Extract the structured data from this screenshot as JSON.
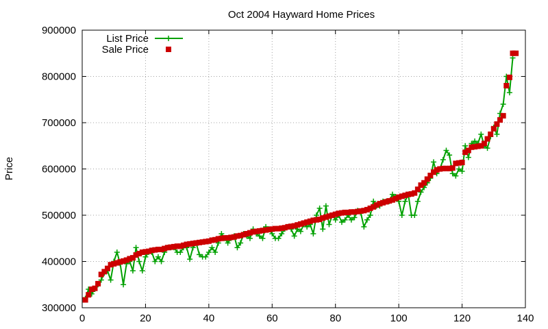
{
  "chart_data": {
    "type": "line",
    "title": "Oct 2004 Hayward Home Prices",
    "xlabel": "",
    "ylabel": "Price",
    "xlim": [
      0,
      140
    ],
    "ylim": [
      300000,
      900000
    ],
    "xticks": [
      0,
      20,
      40,
      60,
      80,
      100,
      120,
      140
    ],
    "yticks": [
      300000,
      400000,
      500000,
      600000,
      700000,
      800000,
      900000
    ],
    "xtick_labels": [
      "0",
      "20",
      "40",
      "60",
      "80",
      "100",
      "120",
      "140"
    ],
    "ytick_labels": [
      "300000",
      "400000",
      "500000",
      "600000",
      "700000",
      "800000",
      "900000"
    ],
    "grid": true,
    "legend_position": "top-left",
    "series": [
      {
        "name": "List Price",
        "style": "line+plus",
        "color": "#00a000",
        "x": [
          1,
          2,
          3,
          4,
          5,
          6,
          7,
          8,
          9,
          10,
          11,
          12,
          13,
          14,
          15,
          16,
          17,
          18,
          19,
          20,
          21,
          22,
          23,
          24,
          25,
          26,
          27,
          28,
          29,
          30,
          31,
          32,
          33,
          34,
          35,
          36,
          37,
          38,
          39,
          40,
          41,
          42,
          43,
          44,
          45,
          46,
          47,
          48,
          49,
          50,
          51,
          52,
          53,
          54,
          55,
          56,
          57,
          58,
          59,
          60,
          61,
          62,
          63,
          64,
          65,
          66,
          67,
          68,
          69,
          70,
          71,
          72,
          73,
          74,
          75,
          76,
          77,
          78,
          79,
          80,
          81,
          82,
          83,
          84,
          85,
          86,
          87,
          88,
          89,
          90,
          91,
          92,
          93,
          94,
          95,
          96,
          97,
          98,
          99,
          100,
          101,
          102,
          103,
          104,
          105,
          106,
          107,
          108,
          109,
          110,
          111,
          112,
          113,
          114,
          115,
          116,
          117,
          118,
          119,
          120,
          121,
          122,
          123,
          124,
          125,
          126,
          127,
          128,
          129,
          130,
          131,
          132,
          133,
          134,
          135,
          136
        ],
        "values": [
          320000,
          340000,
          330000,
          340000,
          350000,
          360000,
          375000,
          380000,
          360000,
          400000,
          420000,
          395000,
          350000,
          395000,
          400000,
          380000,
          430000,
          400000,
          380000,
          410000,
          420000,
          420000,
          400000,
          410000,
          400000,
          420000,
          430000,
          430000,
          430000,
          420000,
          420000,
          430000,
          430000,
          405000,
          430000,
          440000,
          415000,
          410000,
          410000,
          420000,
          430000,
          420000,
          440000,
          460000,
          450000,
          440000,
          450000,
          455000,
          430000,
          440000,
          460000,
          455000,
          450000,
          470000,
          460000,
          455000,
          450000,
          475000,
          470000,
          460000,
          450000,
          450000,
          460000,
          470000,
          475000,
          470000,
          455000,
          470000,
          465000,
          480000,
          475000,
          480000,
          460000,
          500000,
          515000,
          470000,
          520000,
          480000,
          500000,
          490000,
          500000,
          485000,
          490000,
          500000,
          490000,
          495000,
          510000,
          505000,
          475000,
          490000,
          500000,
          530000,
          520000,
          520000,
          530000,
          530000,
          530000,
          545000,
          540000,
          530000,
          500000,
          530000,
          545000,
          500000,
          500000,
          530000,
          550000,
          560000,
          570000,
          580000,
          615000,
          590000,
          600000,
          620000,
          640000,
          630000,
          590000,
          585000,
          600000,
          595000,
          650000,
          625000,
          655000,
          660000,
          655000,
          675000,
          650000,
          645000,
          670000,
          690000,
          675000,
          720000,
          740000,
          800000,
          765000,
          840000
        ],
        "extra_points": [
          [
            136,
            850000
          ]
        ]
      },
      {
        "name": "Sale Price",
        "style": "square",
        "color": "#cc0000",
        "x": [
          1,
          2,
          3,
          4,
          5,
          6,
          7,
          8,
          9,
          10,
          11,
          12,
          13,
          14,
          15,
          16,
          17,
          18,
          19,
          20,
          21,
          22,
          23,
          24,
          25,
          26,
          27,
          28,
          29,
          30,
          31,
          32,
          33,
          34,
          35,
          36,
          37,
          38,
          39,
          40,
          41,
          42,
          43,
          44,
          45,
          46,
          47,
          48,
          49,
          50,
          51,
          52,
          53,
          54,
          55,
          56,
          57,
          58,
          59,
          60,
          61,
          62,
          63,
          64,
          65,
          66,
          67,
          68,
          69,
          70,
          71,
          72,
          73,
          74,
          75,
          76,
          77,
          78,
          79,
          80,
          81,
          82,
          83,
          84,
          85,
          86,
          87,
          88,
          89,
          90,
          91,
          92,
          93,
          94,
          95,
          96,
          97,
          98,
          99,
          100,
          101,
          102,
          103,
          104,
          105,
          106,
          107,
          108,
          109,
          110,
          111,
          112,
          113,
          114,
          115,
          116,
          117,
          118,
          119,
          120,
          121,
          122,
          123,
          124,
          125,
          126,
          127,
          128,
          129,
          130,
          131,
          132,
          133,
          134,
          135,
          136,
          137
        ],
        "values": [
          317000,
          328000,
          340000,
          342000,
          352000,
          372000,
          378000,
          385000,
          393000,
          395000,
          397000,
          399000,
          401000,
          403000,
          406000,
          408000,
          414000,
          417000,
          420000,
          421000,
          422000,
          424000,
          425000,
          426000,
          426000,
          428000,
          430000,
          431000,
          432000,
          433000,
          433000,
          435000,
          437000,
          438000,
          439000,
          440000,
          441000,
          442000,
          443000,
          444000,
          446000,
          447000,
          449000,
          450000,
          451000,
          451000,
          452000,
          453000,
          455000,
          456000,
          458000,
          460000,
          462000,
          464000,
          465000,
          466000,
          467000,
          468000,
          469000,
          470000,
          471000,
          471000,
          472000,
          473000,
          475000,
          476000,
          477000,
          479000,
          481000,
          483000,
          485000,
          487000,
          489000,
          490000,
          491000,
          494000,
          496000,
          498000,
          500000,
          502000,
          504000,
          505000,
          506000,
          506000,
          507000,
          507000,
          508000,
          509000,
          510000,
          512000,
          515000,
          518000,
          522000,
          525000,
          527000,
          529000,
          531000,
          533000,
          536000,
          539000,
          541000,
          543000,
          545000,
          546000,
          548000,
          556000,
          565000,
          570000,
          578000,
          586000,
          593000,
          598000,
          600000,
          601000,
          601000,
          601000,
          602000,
          612000,
          613000,
          614000,
          636000,
          640000,
          647000,
          648000,
          649000,
          650000,
          655000,
          665000,
          675000,
          687000,
          697000,
          706000,
          715000,
          780000,
          798000,
          850000,
          850000
        ]
      }
    ]
  }
}
